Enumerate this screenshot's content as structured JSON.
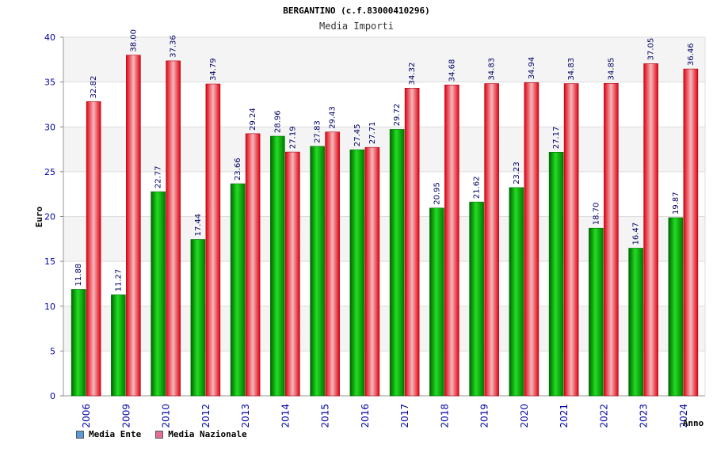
{
  "chart_data": {
    "type": "bar",
    "title": "BERGANTINO (c.f.83000410296)",
    "subtitle": "Media Importi",
    "xlabel": "Anno",
    "ylabel": "Euro",
    "ylim": [
      0,
      40
    ],
    "yticks": [
      0,
      5,
      10,
      15,
      20,
      25,
      30,
      35,
      40
    ],
    "categories": [
      "2006",
      "2009",
      "2010",
      "2012",
      "2013",
      "2014",
      "2015",
      "2016",
      "2017",
      "2018",
      "2019",
      "2020",
      "2021",
      "2022",
      "2023",
      "2024"
    ],
    "series": [
      {
        "name": "Media Ente",
        "color": "#00b000",
        "labels": [
          "11.88",
          "11.27",
          "22.77",
          "17.44",
          "23.66",
          "28.96",
          "27.83",
          "27.45",
          "29.72",
          "20.95",
          "21.62",
          "23.23",
          "27.17",
          "18.70",
          "16.47",
          "19.87"
        ],
        "values": [
          11.88,
          11.27,
          22.77,
          17.44,
          23.66,
          28.96,
          27.83,
          27.45,
          29.72,
          20.95,
          21.62,
          23.23,
          27.17,
          18.7,
          16.47,
          19.87
        ]
      },
      {
        "name": "Media Nazionale",
        "color": "#e00010",
        "labels": [
          "32.82",
          "38.00",
          "37.36",
          "34.79",
          "29.24",
          "27.19",
          "29.43",
          "27.71",
          "34.32",
          "34.68",
          "34.83",
          "34.94",
          "34.83",
          "34.85",
          "37.05",
          "36.46"
        ],
        "values": [
          32.82,
          38.0,
          37.36,
          34.79,
          29.24,
          27.19,
          29.43,
          27.71,
          34.32,
          34.68,
          34.83,
          34.94,
          34.83,
          34.85,
          37.05,
          36.46
        ]
      }
    ],
    "legend": [
      {
        "label": "Media Ente",
        "color": "#5b9bd5"
      },
      {
        "label": "Media Nazionale",
        "color": "#e0709a"
      }
    ],
    "legend_position": "bottom-left",
    "grid": true
  }
}
